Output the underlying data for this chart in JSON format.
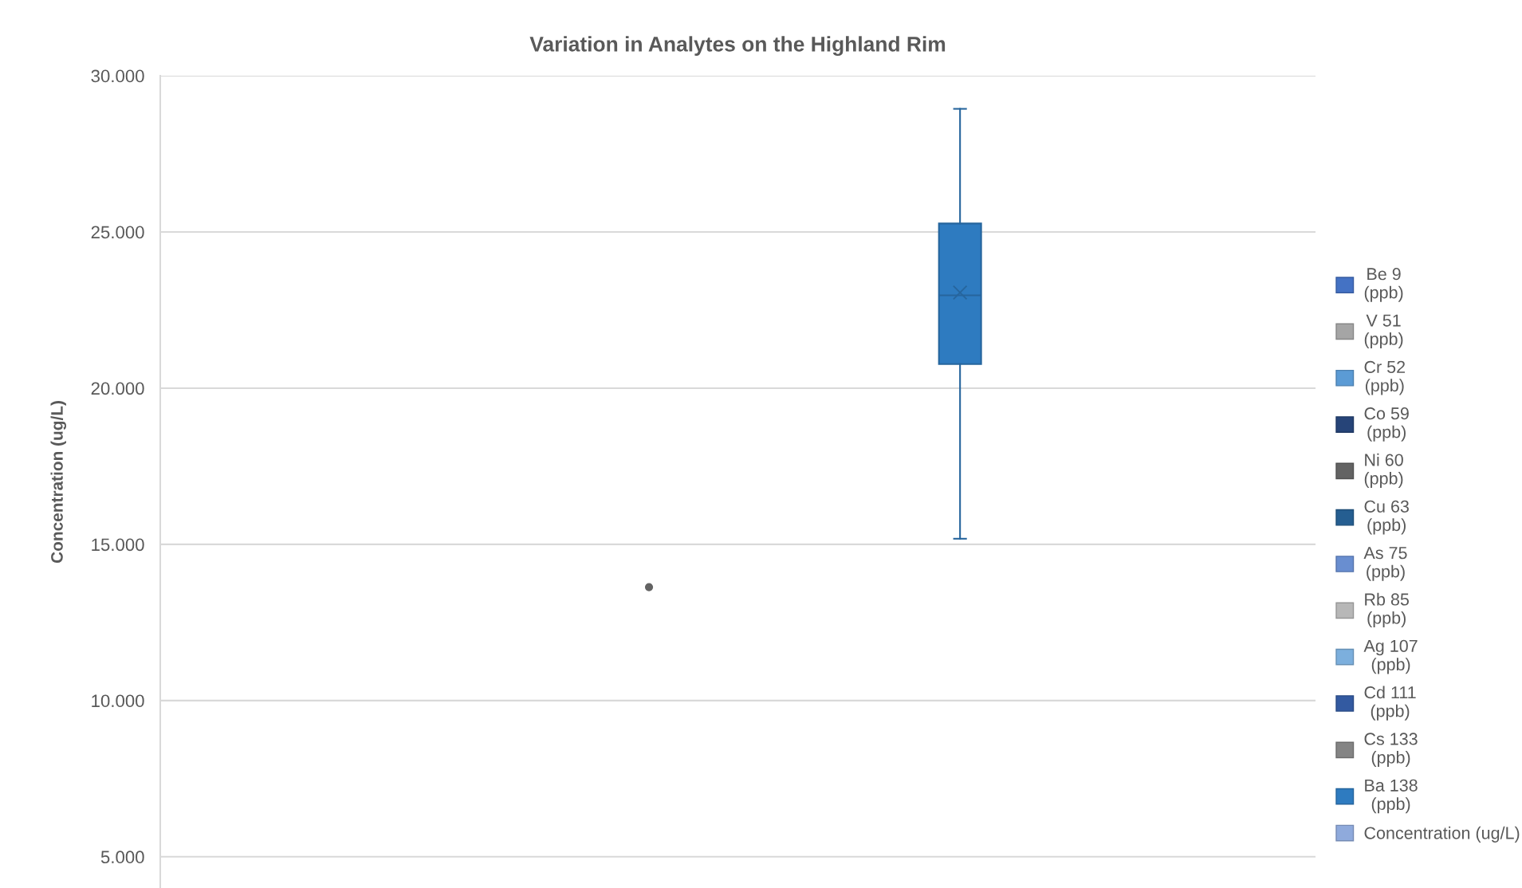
{
  "chart_data": {
    "type": "box",
    "title": "Variation in Analytes on the Highland Rim",
    "ylabel": "Concentration (ug/L)",
    "categories": [
      null
    ],
    "ylim": [
      4,
      30
    ],
    "yticks": [
      {
        "value": 5,
        "label": "5.000"
      },
      {
        "value": 10,
        "label": "10.000"
      },
      {
        "value": 15,
        "label": "15.000"
      },
      {
        "value": 20,
        "label": "20.000"
      },
      {
        "value": 25,
        "label": "25.000"
      },
      {
        "value": 30,
        "label": "30.000"
      }
    ],
    "grid": "y",
    "legend": "right",
    "marker": "circle",
    "series": [
      {
        "name": "Be 9\n(ppb)",
        "color": "#4472c4",
        "boxes": [
          null
        ]
      },
      {
        "name": "V 51\n(ppb)",
        "color": "#a5a5a5",
        "boxes": [
          null
        ]
      },
      {
        "name": "Cr 52\n(ppb)",
        "color": "#5b9bd5",
        "boxes": [
          null
        ]
      },
      {
        "name": "Co 59\n(ppb)",
        "color": "#264478",
        "boxes": [
          null
        ]
      },
      {
        "name": "Ni 60\n(ppb)",
        "color": "#636363",
        "type": "scatter",
        "values": [
          13.63
        ]
      },
      {
        "name": "Cu 63\n(ppb)",
        "color": "#255e91",
        "boxes": [
          null
        ]
      },
      {
        "name": "As 75\n(ppb)",
        "color": "#698ed0",
        "boxes": [
          null
        ]
      },
      {
        "name": "Rb 85\n(ppb)",
        "color": "#b7b7b7",
        "boxes": [
          null
        ]
      },
      {
        "name": "Ag 107\n(ppb)",
        "color": "#7cafdd",
        "boxes": [
          null
        ]
      },
      {
        "name": "Cd 111\n(ppb)",
        "color": "#335aa1",
        "boxes": [
          null
        ]
      },
      {
        "name": "Cs 133\n(ppb)",
        "color": "#848484",
        "boxes": [
          null
        ]
      },
      {
        "name": "Ba 138\n(ppb)",
        "color": "#2e7bc0",
        "boxes": [
          {
            "low": 15.18,
            "q1": 20.77,
            "median": 22.97,
            "q3": 25.27,
            "high": 28.94,
            "mean": 23.06
          }
        ]
      },
      {
        "name": "Concentration (ug/L)",
        "color": "#8faadc",
        "boxes": [
          null
        ]
      }
    ]
  }
}
